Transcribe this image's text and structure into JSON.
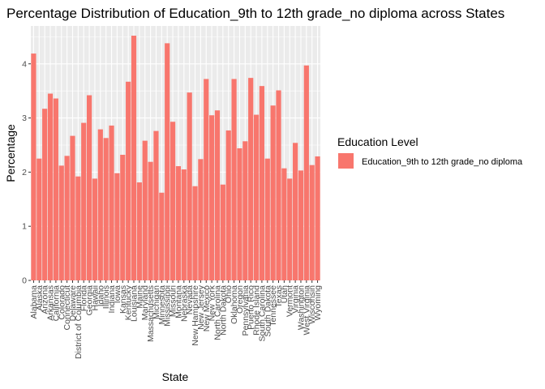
{
  "chart_data": {
    "type": "bar",
    "title": "Percentage Distribution of Education_9th to 12th grade_no diploma across States",
    "xlabel": "State",
    "ylabel": "Percentage",
    "ylim": [
      0,
      4.7
    ],
    "yticks": [
      0,
      1,
      2,
      3,
      4
    ],
    "grid": true,
    "legend": {
      "title": "Education Level",
      "position": "right"
    },
    "series": [
      {
        "name": "Education_9th to 12th grade_no diploma",
        "color": "#F8766D",
        "values": [
          4.19,
          2.25,
          3.17,
          3.45,
          3.36,
          2.12,
          2.3,
          2.67,
          1.92,
          2.91,
          3.42,
          1.88,
          2.79,
          2.63,
          2.86,
          1.98,
          2.32,
          3.67,
          4.52,
          1.81,
          2.58,
          2.19,
          2.76,
          1.62,
          4.38,
          2.93,
          2.11,
          2.05,
          3.47,
          1.74,
          2.24,
          3.72,
          3.05,
          3.14,
          1.77,
          2.77,
          3.72,
          2.44,
          2.57,
          3.74,
          3.06,
          3.59,
          2.25,
          3.23,
          3.51,
          2.07,
          1.88,
          2.54,
          2.03,
          3.97,
          2.13,
          2.29
        ]
      }
    ],
    "categories": [
      "Alabama",
      "Alaska",
      "Arizona",
      "Arkansas",
      "California",
      "Colorado",
      "Connecticut",
      "Delaware",
      "District of Columbia",
      "Florida",
      "Georgia",
      "Hawaii",
      "Idaho",
      "Illinois",
      "Indiana",
      "Iowa",
      "Kansas",
      "Kentucky",
      "Louisiana",
      "Maine",
      "Maryland",
      "Massachusetts",
      "Michigan",
      "Minnesota",
      "Mississippi",
      "Missouri",
      "Montana",
      "Nebraska",
      "Nevada",
      "New Hampshire",
      "New Jersey",
      "New Mexico",
      "New York",
      "North Carolina",
      "North Dakota",
      "Ohio",
      "Oklahoma",
      "Oregon",
      "Pennsylvania",
      "Puerto Rico",
      "Rhode Island",
      "South Carolina",
      "South Dakota",
      "Tennessee",
      "Texas",
      "Utah",
      "Vermont",
      "Virginia",
      "Washington",
      "West Virginia",
      "Wisconsin",
      "Wyoming"
    ]
  },
  "colors": {
    "panel_background": "#EBEBEB",
    "grid_major": "#FFFFFF",
    "bar_fill": "#F8766D"
  }
}
